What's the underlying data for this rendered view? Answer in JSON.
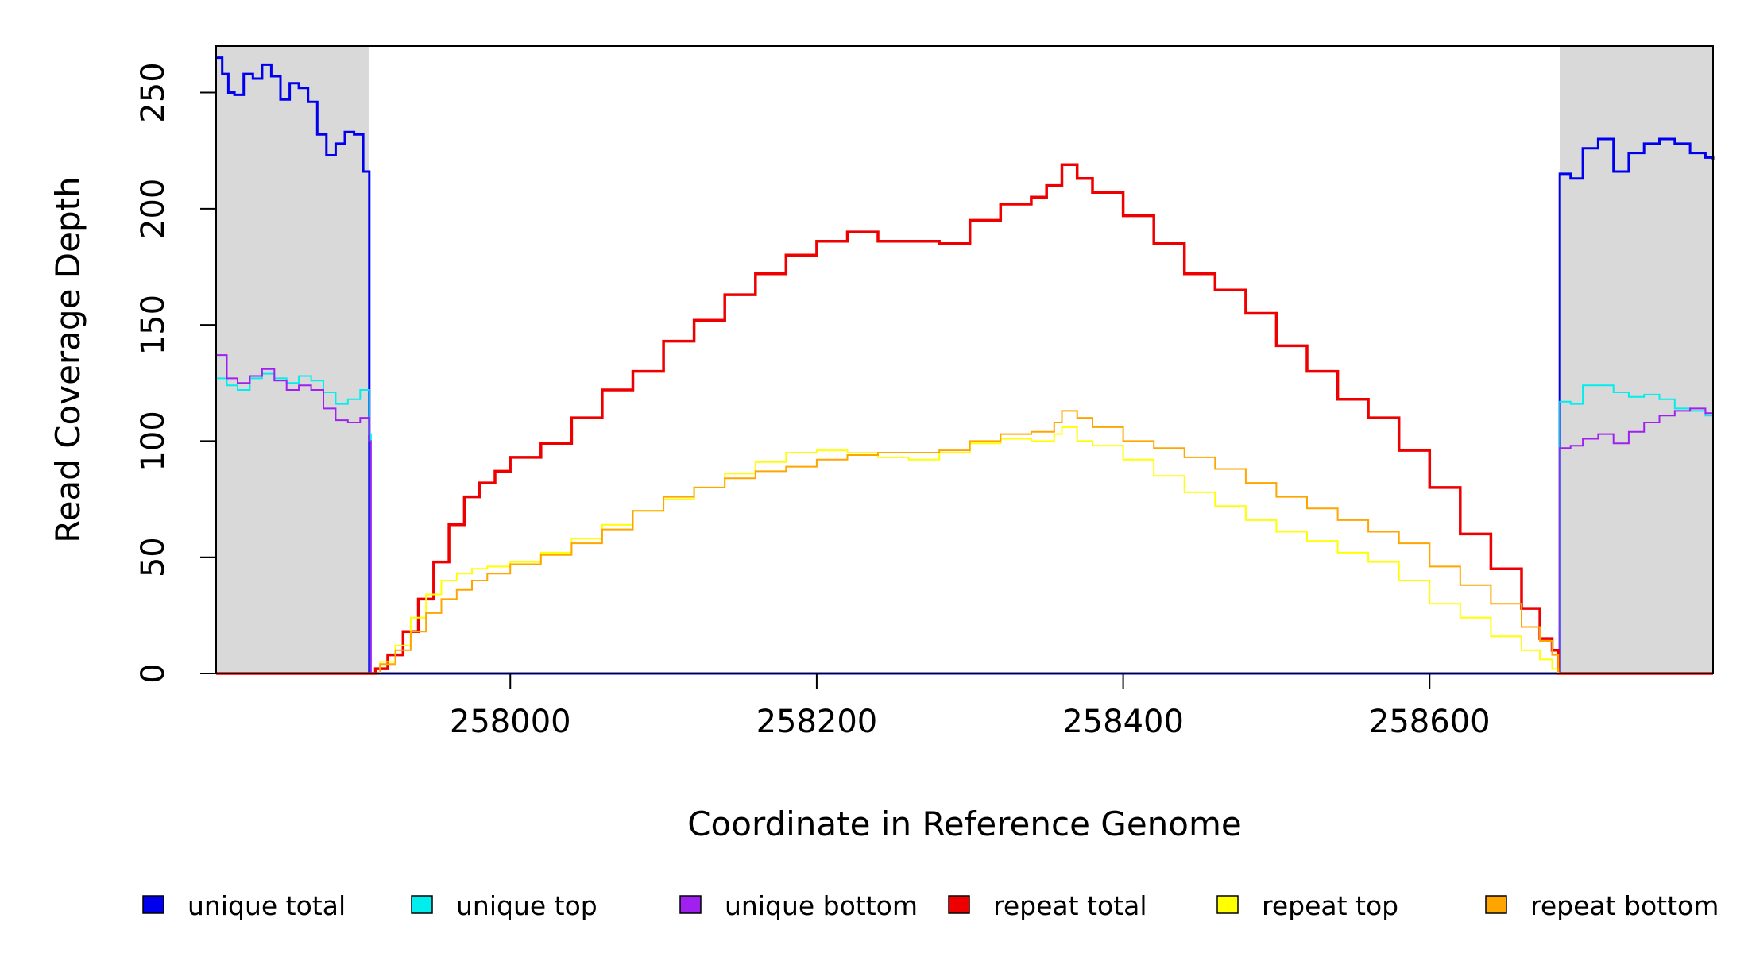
{
  "chart_data": {
    "type": "line",
    "title": "",
    "xlabel": "Coordinate in Reference Genome",
    "ylabel": "Read Coverage Depth",
    "xlim": [
      257808,
      258785
    ],
    "ylim": [
      0,
      270
    ],
    "x_ticks": [
      258000,
      258200,
      258400,
      258600
    ],
    "x_tick_labels": [
      "258000",
      "258200",
      "258400",
      "258600"
    ],
    "y_ticks": [
      0,
      50,
      100,
      150,
      200,
      250
    ],
    "y_tick_labels": [
      "0",
      "50",
      "100",
      "150",
      "200",
      "250"
    ],
    "grid": false,
    "legend_position": "bottom",
    "shaded_regions": [
      {
        "x0": 257808,
        "x1": 257908,
        "color": "#d9d9d9"
      },
      {
        "x0": 258685,
        "x1": 258785,
        "color": "#d9d9d9"
      }
    ],
    "series": [
      {
        "name": "unique total",
        "color": "#0000ee",
        "x": [
          257808,
          257812,
          257816,
          257820,
          257826,
          257832,
          257838,
          257844,
          257850,
          257856,
          257862,
          257868,
          257874,
          257880,
          257886,
          257892,
          257898,
          257904,
          257908,
          257909,
          258684,
          258685,
          258692,
          258700,
          258710,
          258720,
          258730,
          258740,
          258750,
          258760,
          258770,
          258780,
          258785
        ],
        "y": [
          265,
          258,
          250,
          249,
          258,
          256,
          262,
          257,
          247,
          254,
          252,
          246,
          232,
          223,
          228,
          233,
          232,
          216,
          0,
          0,
          0,
          215,
          213,
          226,
          230,
          216,
          224,
          228,
          230,
          228,
          224,
          222,
          221
        ]
      },
      {
        "name": "unique top",
        "color": "#00eeee",
        "x": [
          257808,
          257815,
          257822,
          257830,
          257838,
          257846,
          257854,
          257862,
          257870,
          257878,
          257886,
          257894,
          257902,
          257908,
          257909,
          258684,
          258685,
          258692,
          258700,
          258710,
          258720,
          258730,
          258740,
          258750,
          258760,
          258770,
          258780,
          258785
        ],
        "y": [
          127,
          124,
          122,
          127,
          129,
          127,
          125,
          128,
          126,
          121,
          116,
          118,
          122,
          103,
          0,
          0,
          117,
          116,
          124,
          124,
          121,
          119,
          120,
          118,
          114,
          113,
          111,
          110
        ],
        "width": 2
      },
      {
        "name": "unique bottom",
        "color": "#a020f0",
        "x": [
          257808,
          257815,
          257822,
          257830,
          257838,
          257846,
          257854,
          257862,
          257870,
          257878,
          257886,
          257894,
          257902,
          257908,
          257909,
          258684,
          258685,
          258692,
          258700,
          258710,
          258720,
          258730,
          258740,
          258750,
          258760,
          258770,
          258780,
          258785
        ],
        "y": [
          137,
          127,
          125,
          128,
          131,
          126,
          122,
          124,
          122,
          114,
          109,
          108,
          110,
          100,
          0,
          0,
          97,
          98,
          101,
          103,
          99,
          104,
          108,
          111,
          113,
          114,
          112,
          112
        ],
        "width": 2
      },
      {
        "name": "repeat total",
        "color": "#ee0000",
        "x": [
          257808,
          257908,
          257912,
          257920,
          257930,
          257940,
          257950,
          257960,
          257970,
          257980,
          257990,
          258000,
          258020,
          258040,
          258060,
          258080,
          258100,
          258120,
          258140,
          258160,
          258180,
          258200,
          258220,
          258240,
          258260,
          258280,
          258300,
          258320,
          258340,
          258350,
          258360,
          258370,
          258380,
          258400,
          258420,
          258440,
          258460,
          258480,
          258500,
          258520,
          258540,
          258560,
          258580,
          258600,
          258620,
          258640,
          258660,
          258672,
          258680,
          258684,
          258785
        ],
        "y": [
          0,
          0,
          2,
          8,
          18,
          32,
          48,
          64,
          76,
          82,
          87,
          93,
          99,
          110,
          122,
          130,
          143,
          152,
          163,
          172,
          180,
          186,
          190,
          186,
          186,
          185,
          195,
          202,
          205,
          210,
          219,
          213,
          207,
          197,
          185,
          172,
          165,
          155,
          141,
          130,
          118,
          110,
          96,
          80,
          60,
          45,
          28,
          15,
          10,
          0,
          0
        ],
        "width": 3.5
      },
      {
        "name": "repeat top",
        "color": "#ffff00",
        "x": [
          257808,
          257908,
          257915,
          257925,
          257935,
          257945,
          257955,
          257965,
          257975,
          257985,
          258000,
          258020,
          258040,
          258060,
          258080,
          258100,
          258120,
          258140,
          258160,
          258180,
          258200,
          258220,
          258240,
          258260,
          258280,
          258300,
          258320,
          258340,
          258355,
          258360,
          258370,
          258380,
          258400,
          258420,
          258440,
          258460,
          258480,
          258500,
          258520,
          258540,
          258560,
          258580,
          258600,
          258620,
          258640,
          258660,
          258672,
          258680,
          258684,
          258785
        ],
        "y": [
          0,
          0,
          5,
          12,
          24,
          34,
          40,
          43,
          45,
          46,
          48,
          52,
          58,
          64,
          70,
          75,
          80,
          86,
          91,
          95,
          96,
          95,
          93,
          92,
          95,
          99,
          101,
          100,
          103,
          106,
          100,
          98,
          92,
          85,
          78,
          72,
          66,
          61,
          57,
          52,
          48,
          40,
          30,
          24,
          16,
          10,
          6,
          2,
          0,
          0
        ],
        "width": 2
      },
      {
        "name": "repeat bottom",
        "color": "#ffa500",
        "x": [
          257808,
          257908,
          257915,
          257925,
          257935,
          257945,
          257955,
          257965,
          257975,
          257985,
          258000,
          258020,
          258040,
          258060,
          258080,
          258100,
          258120,
          258140,
          258160,
          258180,
          258200,
          258220,
          258240,
          258260,
          258280,
          258300,
          258320,
          258340,
          258355,
          258360,
          258370,
          258380,
          258400,
          258420,
          258440,
          258460,
          258480,
          258500,
          258520,
          258540,
          258560,
          258580,
          258600,
          258620,
          258640,
          258660,
          258672,
          258680,
          258684,
          258785
        ],
        "y": [
          0,
          0,
          4,
          10,
          18,
          26,
          32,
          36,
          40,
          43,
          47,
          51,
          56,
          62,
          70,
          76,
          80,
          84,
          87,
          89,
          92,
          94,
          95,
          95,
          96,
          100,
          103,
          104,
          108,
          113,
          110,
          106,
          100,
          97,
          93,
          88,
          82,
          76,
          71,
          66,
          61,
          56,
          46,
          38,
          30,
          20,
          14,
          8,
          0,
          0
        ],
        "width": 2
      }
    ]
  }
}
